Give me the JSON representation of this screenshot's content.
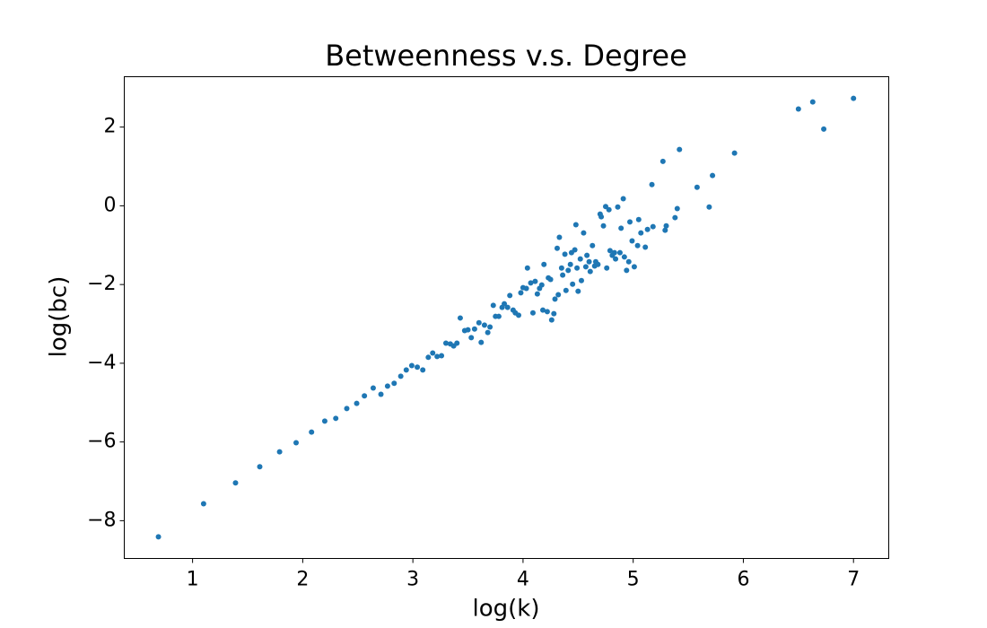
{
  "chart_data": {
    "type": "scatter",
    "title": "Betweenness v.s. Degree",
    "xlabel": "log(k)",
    "ylabel": "log(bc)",
    "color": "#1f77b4",
    "xlim": [
      0.38,
      7.32
    ],
    "ylim": [
      -8.96,
      3.28
    ],
    "xticks": [
      1,
      2,
      3,
      4,
      5,
      6,
      7
    ],
    "yticks": [
      {
        "value": -8,
        "label": "−8"
      },
      {
        "value": -6,
        "label": "−6"
      },
      {
        "value": -4,
        "label": "−4"
      },
      {
        "value": -2,
        "label": "−2"
      },
      0,
      2
    ],
    "x": [
      0.69,
      1.1,
      1.39,
      1.61,
      1.79,
      1.94,
      2.08,
      2.2,
      2.3,
      2.4,
      2.49,
      2.56,
      2.64,
      2.71,
      2.77,
      2.83,
      2.89,
      2.94,
      2.99,
      3.04,
      3.09,
      3.14,
      3.18,
      3.22,
      3.26,
      3.3,
      3.34,
      3.37,
      3.4,
      3.43,
      3.47,
      3.5,
      3.53,
      3.56,
      3.6,
      3.62,
      3.65,
      3.68,
      3.7,
      3.73,
      3.75,
      3.78,
      3.81,
      3.83,
      3.86,
      3.88,
      3.91,
      3.93,
      3.96,
      3.98,
      4.0,
      4.03,
      4.04,
      4.07,
      4.09,
      4.11,
      4.13,
      4.15,
      4.17,
      4.18,
      4.19,
      4.22,
      4.23,
      4.25,
      4.26,
      4.28,
      4.29,
      4.31,
      4.32,
      4.33,
      4.35,
      4.36,
      4.38,
      4.39,
      4.41,
      4.43,
      4.44,
      4.45,
      4.47,
      4.48,
      4.49,
      4.5,
      4.52,
      4.53,
      4.55,
      4.57,
      4.58,
      4.6,
      4.61,
      4.63,
      4.65,
      4.66,
      4.68,
      4.7,
      4.71,
      4.73,
      4.75,
      4.76,
      4.78,
      4.79,
      4.81,
      4.83,
      4.84,
      4.86,
      4.88,
      4.89,
      4.91,
      4.92,
      4.94,
      4.96,
      4.97,
      4.99,
      5.01,
      5.04,
      5.05,
      5.07,
      5.11,
      5.13,
      5.17,
      5.18,
      5.27,
      5.29,
      5.3,
      5.38,
      5.4,
      5.42,
      5.58,
      5.69,
      5.72,
      5.92,
      6.5,
      6.63,
      6.73,
      7.0
    ],
    "values": [
      -8.41,
      -7.57,
      -7.04,
      -6.63,
      -6.25,
      -6.02,
      -5.75,
      -5.47,
      -5.4,
      -5.15,
      -5.02,
      -4.83,
      -4.63,
      -4.79,
      -4.58,
      -4.51,
      -4.33,
      -4.17,
      -4.06,
      -4.1,
      -4.17,
      -3.85,
      -3.74,
      -3.83,
      -3.81,
      -3.49,
      -3.51,
      -3.56,
      -3.49,
      -2.85,
      -3.17,
      -3.15,
      -3.35,
      -3.13,
      -2.97,
      -3.47,
      -3.03,
      -3.22,
      -3.08,
      -2.53,
      -2.81,
      -2.81,
      -2.58,
      -2.49,
      -2.58,
      -2.28,
      -2.65,
      -2.72,
      -2.78,
      -2.21,
      -2.08,
      -2.1,
      -1.58,
      -1.96,
      -2.72,
      -1.92,
      -2.24,
      -2.1,
      -2.01,
      -2.65,
      -1.49,
      -2.69,
      -1.83,
      -1.87,
      -2.9,
      -2.74,
      -2.37,
      -1.08,
      -2.26,
      -0.8,
      -1.58,
      -1.76,
      -1.23,
      -2.15,
      -1.64,
      -1.49,
      -1.19,
      -1.99,
      -1.12,
      -0.48,
      -1.58,
      -2.17,
      -1.35,
      -1.9,
      -0.69,
      -1.55,
      -1.26,
      -1.42,
      -1.67,
      -1.01,
      -1.53,
      -1.42,
      -1.49,
      -0.21,
      -0.28,
      -0.51,
      -0.02,
      -1.58,
      -0.1,
      -1.14,
      -1.26,
      -1.19,
      -1.35,
      -0.03,
      -1.19,
      -0.57,
      0.18,
      -1.3,
      -1.64,
      -1.42,
      -0.41,
      -0.89,
      -1.55,
      -1.01,
      -0.35,
      -0.69,
      -1.05,
      -0.6,
      0.54,
      -0.53,
      1.13,
      -0.62,
      -0.51,
      -0.3,
      -0.07,
      1.43,
      0.47,
      -0.03,
      0.77,
      1.34,
      2.46,
      2.64,
      1.95,
      2.73
    ]
  }
}
